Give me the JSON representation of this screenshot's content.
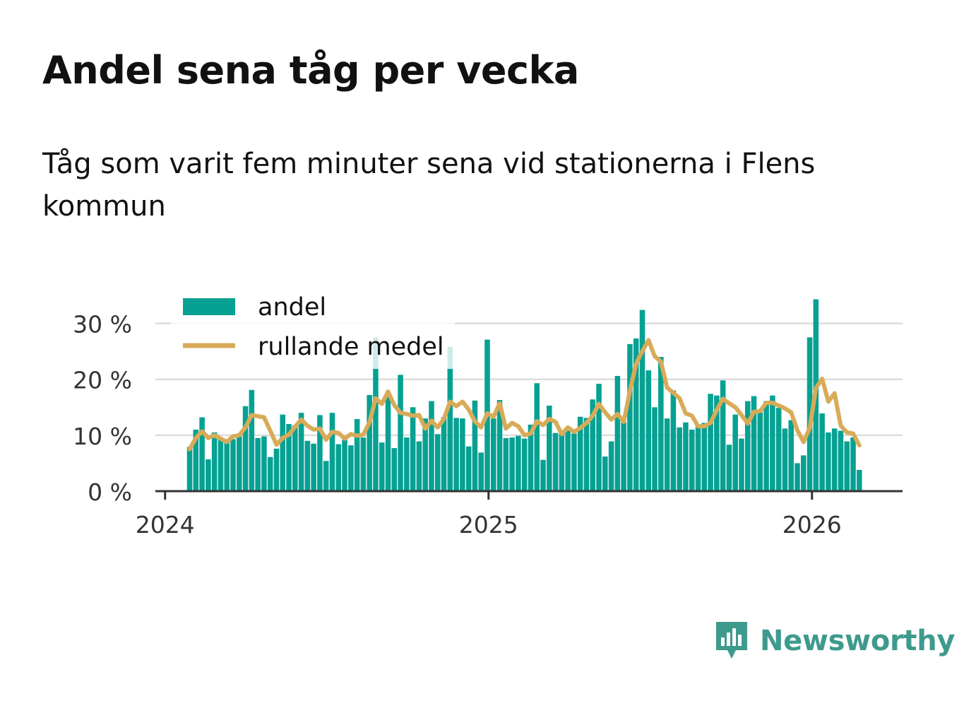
{
  "header": {
    "title": "Andel sena tåg per vecka",
    "subtitle": "Tåg som varit fem minuter sena vid stationerna i Flens kommun"
  },
  "brand": {
    "name": "Newsworthy",
    "icon": "newsworthy-logo-icon",
    "color": "#3e9a8c"
  },
  "colors": {
    "bar": "#06a192",
    "line": "#d8ab59",
    "grid": "#dddddd",
    "axis": "#333333"
  },
  "chart_data": {
    "type": "bar",
    "title": "Andel sena tåg per vecka",
    "xlabel": "",
    "ylabel": "",
    "ylim": [
      0,
      35
    ],
    "yticks": [
      0,
      10,
      20,
      30
    ],
    "ytick_labels": [
      "0 %",
      "10 %",
      "20 %",
      "30 %"
    ],
    "xticks": [
      2024,
      2025,
      2026
    ],
    "xtick_labels": [
      "2024",
      "2025",
      "2026"
    ],
    "xlim": [
      2023.97,
      2026.28
    ],
    "grid": true,
    "legend": [
      "andel",
      "rullande medel"
    ],
    "legend_position": "top-left",
    "start": 2024.076,
    "step": 0.01917,
    "series": [
      {
        "name": "andel",
        "type": "bar",
        "values": [
          7.9,
          11,
          13.2,
          5.7,
          10.5,
          9.5,
          9,
          9.3,
          9.8,
          15.2,
          18.1,
          9.5,
          9.8,
          6.1,
          7.6,
          13.7,
          12,
          11.8,
          14,
          9,
          8.5,
          13.6,
          5.4,
          14,
          8.4,
          9.2,
          8.2,
          12.9,
          9.6,
          17.2,
          27.5,
          8.7,
          17,
          7.7,
          20.8,
          9.6,
          15,
          8.9,
          13,
          16.1,
          10.2,
          13.2,
          25.8,
          13.1,
          13,
          8,
          16.2,
          6.9,
          27.1,
          13,
          16.3,
          9.5,
          9.6,
          9.9,
          9.4,
          11.9,
          19.3,
          5.6,
          15.3,
          10.4,
          10.3,
          10.8,
          10.3,
          13.3,
          13.1,
          16.4,
          19.2,
          6.2,
          8.9,
          20.6,
          12.3,
          26.3,
          27.3,
          32.4,
          21.6,
          15,
          24,
          13,
          18,
          11.4,
          12.3,
          11,
          11.5,
          12.2,
          17.4,
          17.1,
          19.8,
          8.3,
          13.7,
          9.4,
          16.1,
          17,
          14.1,
          16.1,
          17.1,
          14.9,
          11.2,
          12.7,
          5,
          6.4,
          27.5,
          34.3,
          13.9,
          10.5,
          11.2,
          10.8,
          8.9,
          9.6,
          3.8
        ],
        "x_estimated": true
      },
      {
        "name": "rullande medel",
        "type": "line",
        "values": [
          7.5,
          9.5,
          10.7,
          9.5,
          10,
          9.4,
          8.8,
          9.8,
          10,
          11.4,
          13.6,
          13.4,
          13.2,
          10.8,
          8.3,
          9.5,
          10.1,
          11.5,
          12.8,
          11.7,
          11,
          11.2,
          9.2,
          10.6,
          10.4,
          9.4,
          10.2,
          9.9,
          10.1,
          12.3,
          16.6,
          15.6,
          17.8,
          15.4,
          14,
          13.8,
          13.5,
          13.6,
          11.2,
          12.6,
          11.4,
          12.9,
          16,
          15.2,
          16,
          14.6,
          12.5,
          11.4,
          13.9,
          13.3,
          15.7,
          11.2,
          12.2,
          11.6,
          10,
          10.3,
          12.5,
          11.8,
          12.9,
          12.4,
          10.2,
          11.4,
          10.6,
          11.3,
          12.2,
          13.5,
          15.6,
          14.1,
          12.8,
          13.8,
          12.4,
          17.9,
          22.8,
          25,
          27,
          24.1,
          23.2,
          18.5,
          17.6,
          16.6,
          13.9,
          13.5,
          11.6,
          11.6,
          12.2,
          14.5,
          16.5,
          15.7,
          15,
          13.6,
          12.1,
          14.2,
          14.3,
          15.8,
          15.8,
          15.3,
          14.8,
          14.1,
          10.9,
          8.8,
          11.3,
          18.4,
          20.1,
          16,
          17.5,
          11.7,
          10.5,
          10.3,
          8.2
        ]
      }
    ]
  }
}
